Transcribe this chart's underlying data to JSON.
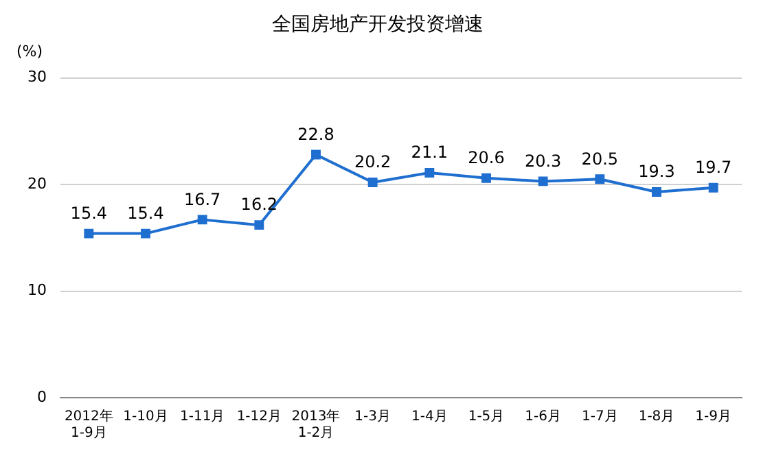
{
  "chart_data": {
    "type": "line",
    "title": "全国房地产开发投资增速",
    "ylabel": "(%)",
    "categories": [
      "2012年\n1-9月",
      "1-10月",
      "1-11月",
      "1-12月",
      "2013年\n1-2月",
      "1-3月",
      "1-4月",
      "1-5月",
      "1-6月",
      "1-7月",
      "1-8月",
      "1-9月"
    ],
    "series": [
      {
        "color": "#1f6fd0",
        "values": [
          15.4,
          15.4,
          16.7,
          16.2,
          22.8,
          20.2,
          21.1,
          20.6,
          20.3,
          20.5,
          19.3,
          19.7
        ]
      }
    ],
    "ylim": [
      0,
      30
    ],
    "yticks": [
      0,
      10,
      20,
      30
    ],
    "grid": "y",
    "data_labels": true,
    "marker": "square",
    "line_style": "solid",
    "legend": false
  }
}
